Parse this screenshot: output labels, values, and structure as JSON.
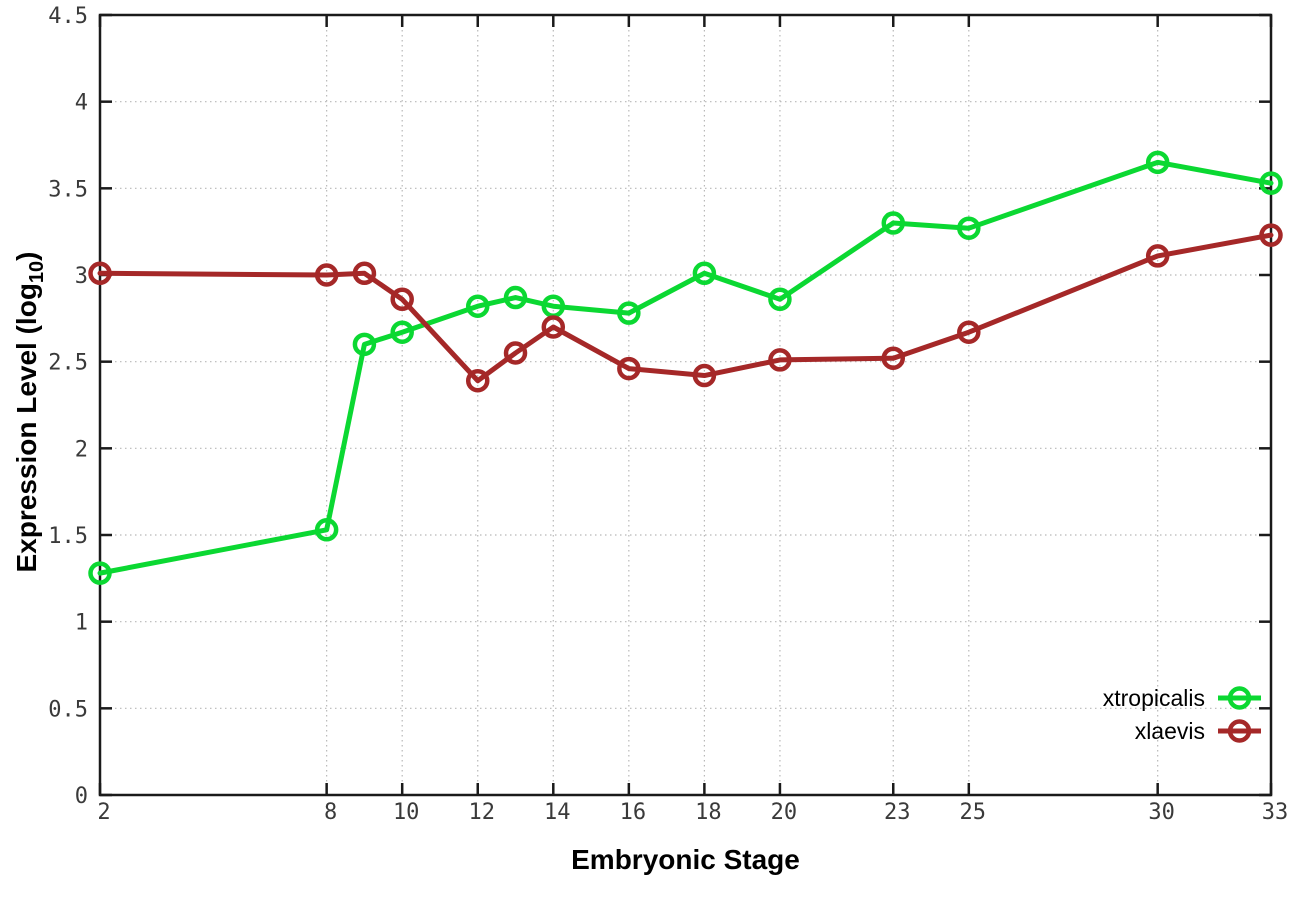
{
  "chart_data": {
    "type": "line",
    "title": "",
    "xlabel": "Embryonic Stage",
    "ylabel": "Expression Level (log10)",
    "xlim": [
      2,
      33
    ],
    "ylim": [
      0,
      4.5
    ],
    "x": [
      2,
      8,
      9,
      10,
      12,
      13,
      14,
      16,
      18,
      20,
      23,
      25,
      30,
      33
    ],
    "xticks": [
      2,
      8,
      10,
      12,
      14,
      16,
      18,
      20,
      23,
      25,
      30,
      33
    ],
    "yticks": [
      0,
      0.5,
      1,
      1.5,
      2,
      2.5,
      3,
      3.5,
      4,
      4.5
    ],
    "grid": true,
    "legend_position": "inside-bottom-right",
    "series": [
      {
        "name": "xtropicalis",
        "color": "#0bd832",
        "marker": "open-circle",
        "values": [
          1.28,
          1.53,
          2.6,
          2.67,
          2.82,
          2.87,
          2.82,
          2.78,
          3.01,
          2.86,
          3.3,
          3.27,
          3.65,
          3.53
        ]
      },
      {
        "name": "xlaevis",
        "color": "#a52828",
        "marker": "open-circle",
        "values": [
          3.01,
          3.0,
          3.01,
          2.86,
          2.39,
          2.55,
          2.7,
          2.46,
          2.42,
          2.51,
          2.52,
          2.67,
          3.11,
          3.23
        ]
      }
    ],
    "colors": {
      "axis": "#1a1a1a",
      "grid": "#b8b8b8",
      "tick_label": "#3a3a3a",
      "axis_title": "#000000",
      "background": "#ffffff"
    }
  }
}
